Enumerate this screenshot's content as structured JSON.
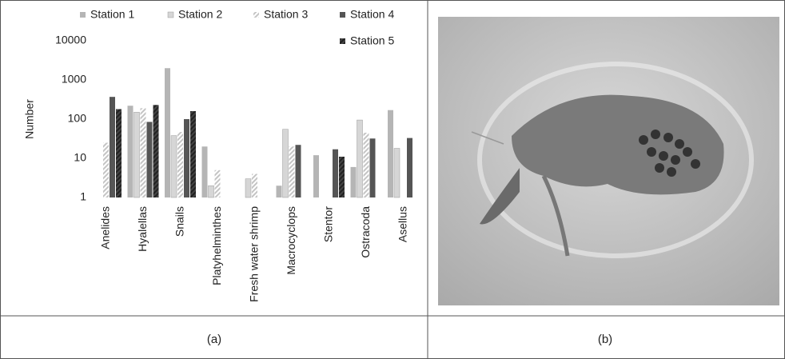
{
  "chart_data": {
    "type": "bar",
    "y_label": "Number",
    "log_scale": true,
    "categories": [
      "Anelides",
      "Hyalellas",
      "Snails",
      "Platyhelminthes",
      "Fresh water shrimp",
      "Macrocyclops",
      "Stentor",
      "Ostracoda",
      "Asellus"
    ],
    "series": [
      {
        "name": "Station 1",
        "color": "#b5b5b5",
        "pattern": "solid",
        "values": [
          null,
          220,
          2000,
          20,
          null,
          2,
          12,
          6,
          170
        ]
      },
      {
        "name": "Station 2",
        "color": "#d6d6d6",
        "pattern": "solid",
        "values": [
          null,
          150,
          38,
          2,
          3,
          55,
          null,
          95,
          18
        ]
      },
      {
        "name": "Station 3",
        "color": "#c4c4c4",
        "pattern": "hatched",
        "values": [
          25,
          190,
          47,
          5,
          4,
          20,
          null,
          45,
          null
        ]
      },
      {
        "name": "Station 4",
        "color": "#555555",
        "pattern": "solid",
        "values": [
          370,
          85,
          100,
          null,
          null,
          22,
          17,
          32,
          33
        ]
      },
      {
        "name": "Station 5",
        "color": "#444444",
        "pattern": "hatched",
        "values": [
          180,
          230,
          160,
          null,
          null,
          null,
          11,
          null,
          null
        ]
      }
    ],
    "ylim": [
      1,
      10000
    ],
    "yticks": [
      1,
      10,
      100,
      1000,
      10000
    ]
  },
  "captions": [
    "(a)",
    "(b)"
  ]
}
